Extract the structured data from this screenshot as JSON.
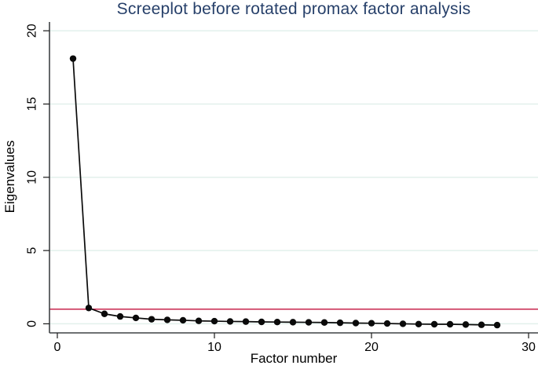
{
  "figure": {
    "title": "Screeplot before rotated promax factor analysis",
    "x_axis_label": "Factor number",
    "y_axis_label": "Eigenvalues"
  },
  "chart_data": {
    "type": "line",
    "title": "Screeplot before rotated promax factor analysis",
    "xlabel": "Factor number",
    "ylabel": "Eigenvalues",
    "x": [
      1,
      2,
      3,
      4,
      5,
      6,
      7,
      8,
      9,
      10,
      11,
      12,
      13,
      14,
      15,
      16,
      17,
      18,
      19,
      20,
      21,
      22,
      23,
      24,
      25,
      26,
      27,
      28
    ],
    "y": [
      18.1,
      1.08,
      0.68,
      0.5,
      0.4,
      0.31,
      0.27,
      0.24,
      0.2,
      0.18,
      0.16,
      0.15,
      0.13,
      0.12,
      0.11,
      0.1,
      0.09,
      0.07,
      0.05,
      0.04,
      0.02,
      0.0,
      -0.02,
      -0.03,
      -0.03,
      -0.05,
      -0.07,
      -0.09
    ],
    "x_ticks": [
      0,
      10,
      20,
      30
    ],
    "y_ticks": [
      0,
      5,
      10,
      15,
      20
    ],
    "xlim": [
      -0.5,
      30.6
    ],
    "ylim": [
      -0.62,
      20.6
    ],
    "grid": "horizontal",
    "legend": "none",
    "marker": "filled-circle",
    "reference_line": {
      "axis": "y",
      "value": 1,
      "color": "#c3103c"
    },
    "colors": {
      "series": "#0a0a0a",
      "grid": "#e2f0ec",
      "title": "#27406a",
      "reference": "#c3103c",
      "background": "#ffffff"
    }
  }
}
